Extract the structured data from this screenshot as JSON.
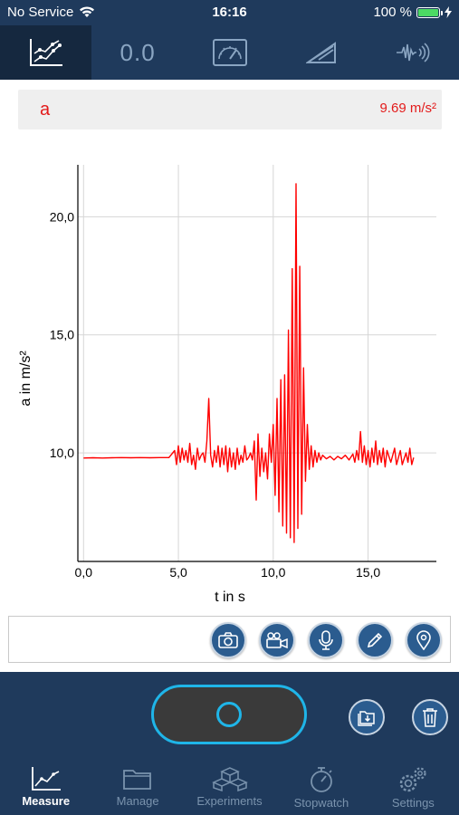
{
  "status_bar": {
    "carrier": "No Service",
    "time": "16:16",
    "battery_text": "100 %"
  },
  "top_tabs": [
    {
      "name": "graph-tab",
      "icon": "graph-icon",
      "active": true
    },
    {
      "name": "value-tab",
      "label": "0.0",
      "active": false
    },
    {
      "name": "gauge-tab",
      "icon": "gauge-icon",
      "active": false
    },
    {
      "name": "ramp-tab",
      "icon": "ramp-icon",
      "active": false
    },
    {
      "name": "audio-tab",
      "icon": "audio-wave-icon",
      "active": false
    }
  ],
  "value_bar": {
    "label": "a",
    "value": "9.69 m/s²",
    "color": "#e31b1b"
  },
  "chart_data": {
    "type": "line",
    "xlabel": "t in s",
    "ylabel": "a in m/s²",
    "xlim": [
      -0.3,
      18.6
    ],
    "ylim": [
      5.4,
      22.2
    ],
    "xticks": [
      "0,0",
      "5,0",
      "10,0",
      "15,0"
    ],
    "yticks": [
      "10,0",
      "15,0",
      "20,0"
    ],
    "grid": true,
    "series": [
      {
        "color": "#ff0000",
        "points": [
          [
            0.0,
            9.78
          ],
          [
            0.5,
            9.79
          ],
          [
            1.0,
            9.78
          ],
          [
            1.5,
            9.79
          ],
          [
            2.0,
            9.8
          ],
          [
            2.5,
            9.79
          ],
          [
            3.0,
            9.8
          ],
          [
            3.5,
            9.79
          ],
          [
            4.0,
            9.8
          ],
          [
            4.5,
            9.8
          ],
          [
            4.8,
            10.1
          ],
          [
            4.9,
            9.5
          ],
          [
            5.0,
            10.3
          ],
          [
            5.1,
            9.6
          ],
          [
            5.2,
            10.2
          ],
          [
            5.3,
            9.7
          ],
          [
            5.4,
            10.1
          ],
          [
            5.5,
            9.6
          ],
          [
            5.6,
            10.4
          ],
          [
            5.7,
            9.5
          ],
          [
            5.8,
            9.9
          ],
          [
            5.9,
            9.3
          ],
          [
            6.0,
            10.2
          ],
          [
            6.1,
            9.7
          ],
          [
            6.2,
            9.9
          ],
          [
            6.3,
            10.0
          ],
          [
            6.4,
            9.6
          ],
          [
            6.5,
            10.5
          ],
          [
            6.6,
            12.3
          ],
          [
            6.7,
            9.9
          ],
          [
            6.8,
            9.4
          ],
          [
            6.9,
            10.1
          ],
          [
            7.0,
            9.6
          ],
          [
            7.1,
            10.3
          ],
          [
            7.2,
            9.4
          ],
          [
            7.3,
            10.2
          ],
          [
            7.4,
            9.5
          ],
          [
            7.5,
            10.3
          ],
          [
            7.6,
            9.2
          ],
          [
            7.7,
            10.2
          ],
          [
            7.8,
            9.4
          ],
          [
            7.9,
            10.0
          ],
          [
            8.0,
            9.3
          ],
          [
            8.1,
            10.2
          ],
          [
            8.2,
            9.5
          ],
          [
            8.3,
            9.9
          ],
          [
            8.4,
            9.6
          ],
          [
            8.5,
            10.3
          ],
          [
            8.6,
            9.7
          ],
          [
            8.7,
            9.8
          ],
          [
            8.8,
            10.0
          ],
          [
            8.9,
            9.7
          ],
          [
            9.0,
            10.5
          ],
          [
            9.1,
            8.0
          ],
          [
            9.2,
            10.8
          ],
          [
            9.3,
            9.0
          ],
          [
            9.4,
            10.2
          ],
          [
            9.5,
            9.2
          ],
          [
            9.6,
            10.0
          ],
          [
            9.7,
            8.9
          ],
          [
            9.8,
            10.8
          ],
          [
            9.9,
            9.6
          ],
          [
            10.0,
            11.2
          ],
          [
            10.1,
            8.2
          ],
          [
            10.2,
            12.3
          ],
          [
            10.3,
            7.5
          ],
          [
            10.4,
            13.1
          ],
          [
            10.5,
            6.9
          ],
          [
            10.6,
            13.3
          ],
          [
            10.7,
            6.6
          ],
          [
            10.8,
            15.2
          ],
          [
            10.9,
            6.4
          ],
          [
            11.0,
            17.8
          ],
          [
            11.1,
            6.2
          ],
          [
            11.2,
            21.4
          ],
          [
            11.3,
            6.8
          ],
          [
            11.4,
            17.9
          ],
          [
            11.5,
            7.4
          ],
          [
            11.6,
            13.6
          ],
          [
            11.7,
            8.8
          ],
          [
            11.8,
            11.2
          ],
          [
            11.9,
            9.3
          ],
          [
            12.0,
            10.3
          ],
          [
            12.1,
            9.4
          ],
          [
            12.2,
            10.1
          ],
          [
            12.3,
            9.6
          ],
          [
            12.4,
            10.0
          ],
          [
            12.5,
            9.7
          ],
          [
            12.6,
            9.9
          ],
          [
            12.8,
            9.75
          ],
          [
            13.0,
            9.85
          ],
          [
            13.2,
            9.7
          ],
          [
            13.4,
            9.85
          ],
          [
            13.6,
            9.75
          ],
          [
            13.8,
            9.9
          ],
          [
            14.0,
            9.7
          ],
          [
            14.2,
            9.95
          ],
          [
            14.3,
            9.6
          ],
          [
            14.4,
            10.1
          ],
          [
            14.5,
            9.7
          ],
          [
            14.6,
            10.9
          ],
          [
            14.7,
            9.6
          ],
          [
            14.8,
            10.3
          ],
          [
            14.9,
            9.5
          ],
          [
            15.0,
            10.1
          ],
          [
            15.1,
            9.4
          ],
          [
            15.2,
            10.2
          ],
          [
            15.3,
            9.6
          ],
          [
            15.4,
            10.5
          ],
          [
            15.5,
            9.5
          ],
          [
            15.6,
            10.1
          ],
          [
            15.7,
            9.6
          ],
          [
            15.8,
            10.2
          ],
          [
            15.9,
            9.4
          ],
          [
            16.0,
            10.1
          ],
          [
            16.2,
            9.6
          ],
          [
            16.4,
            10.2
          ],
          [
            16.5,
            9.5
          ],
          [
            16.7,
            10.1
          ],
          [
            16.8,
            9.5
          ],
          [
            17.0,
            10.0
          ],
          [
            17.1,
            9.6
          ],
          [
            17.2,
            10.2
          ],
          [
            17.3,
            9.5
          ],
          [
            17.4,
            9.8
          ]
        ]
      }
    ]
  },
  "media_bar": {
    "buttons": [
      {
        "name": "camera-button",
        "icon": "camera-icon"
      },
      {
        "name": "video-button",
        "icon": "video-camera-icon"
      },
      {
        "name": "microphone-button",
        "icon": "microphone-icon"
      },
      {
        "name": "note-button",
        "icon": "pencil-icon"
      },
      {
        "name": "location-button",
        "icon": "location-pin-icon"
      }
    ]
  },
  "controls": {
    "record": "record-button",
    "save": "save-folder-icon",
    "delete": "trash-icon"
  },
  "tab_bar": {
    "items": [
      {
        "label": "Measure",
        "icon": "chart-icon",
        "active": true
      },
      {
        "label": "Manage",
        "icon": "folder-icon",
        "active": false
      },
      {
        "label": "Experiments",
        "icon": "cubes-icon",
        "active": false
      },
      {
        "label": "Stopwatch",
        "icon": "stopwatch-icon",
        "active": false
      },
      {
        "label": "Settings",
        "icon": "gears-icon",
        "active": false
      }
    ]
  },
  "colors": {
    "nav_bg": "#1f3a5c",
    "active_tab_bg": "#15283f",
    "accent": "#1fb5e8",
    "button_bg": "#2b5c8f",
    "data": "#ff0000"
  }
}
